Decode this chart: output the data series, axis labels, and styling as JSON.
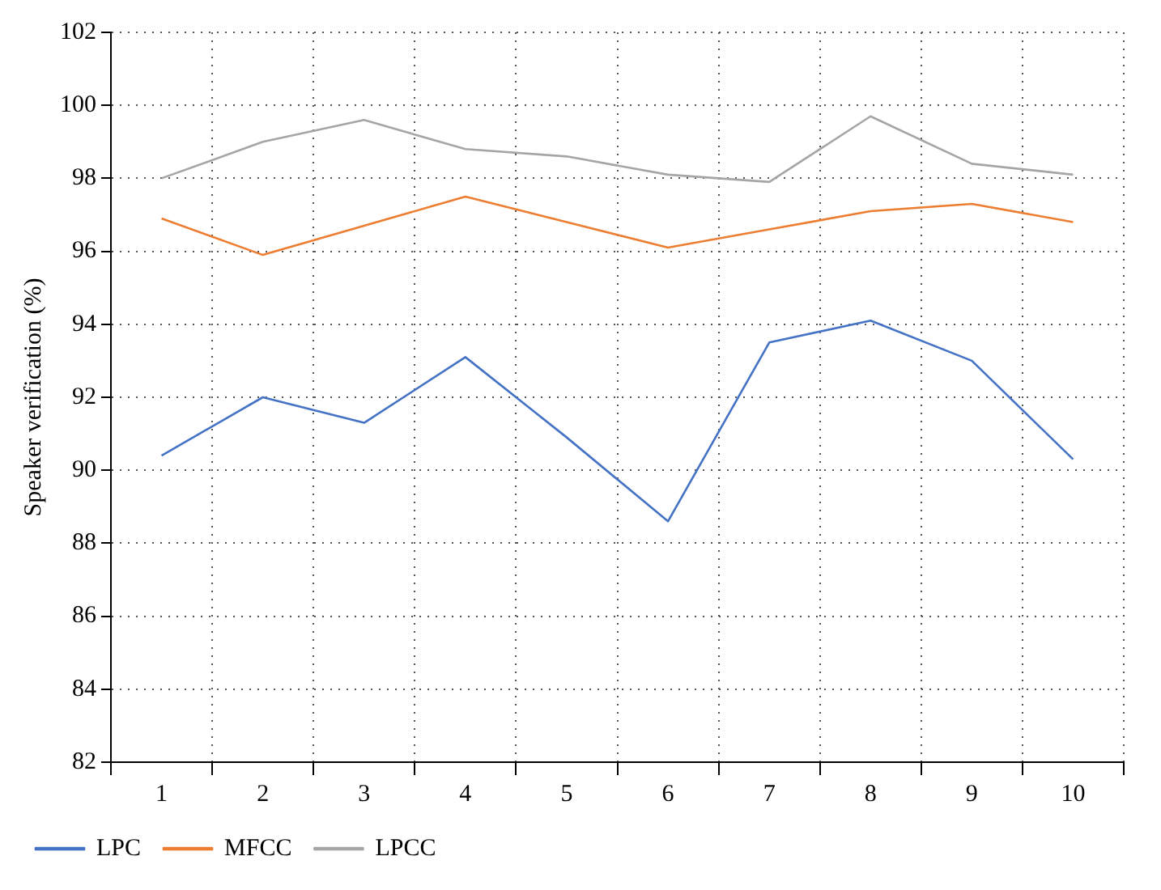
{
  "chart_data": {
    "type": "line",
    "ylabel": "Speaker verification (%)",
    "categories": [
      "1",
      "2",
      "3",
      "4",
      "5",
      "6",
      "7",
      "8",
      "9",
      "10"
    ],
    "series": [
      {
        "name": "LPC",
        "color": "#4472c4",
        "values": [
          90.4,
          92.0,
          91.3,
          93.1,
          90.9,
          88.6,
          93.5,
          94.1,
          93.0,
          90.3
        ]
      },
      {
        "name": "MFCC",
        "color": "#ed7d31",
        "values": [
          96.9,
          95.9,
          96.7,
          97.5,
          96.8,
          96.1,
          96.6,
          97.1,
          97.3,
          96.8
        ]
      },
      {
        "name": "LPCC",
        "color": "#a5a5a5",
        "values": [
          98.0,
          99.0,
          99.6,
          98.8,
          98.6,
          98.1,
          97.9,
          99.7,
          98.4,
          98.1
        ]
      }
    ],
    "ylim": [
      82,
      102
    ],
    "yticks": [
      82,
      84,
      86,
      88,
      90,
      92,
      94,
      96,
      98,
      100,
      102
    ],
    "grid": true,
    "legend": "bottom left",
    "marker": "none",
    "line_style": "solid"
  }
}
